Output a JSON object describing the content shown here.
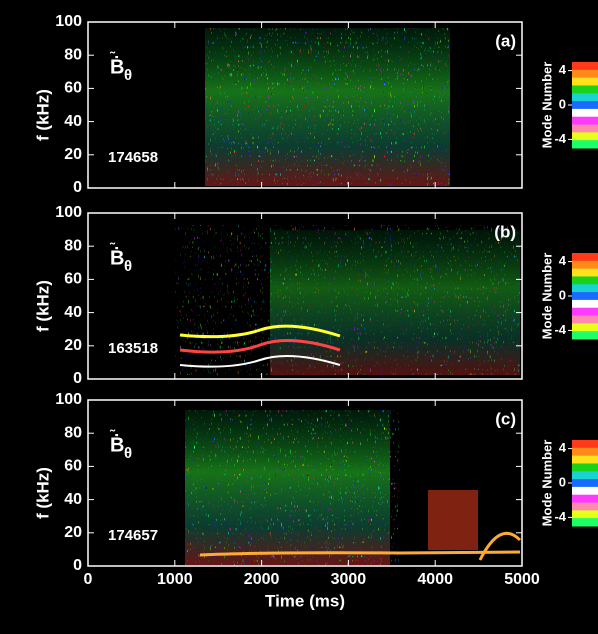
{
  "chart_data": [
    {
      "type": "spectrogram",
      "panel_label": "(a)",
      "shot": "174658",
      "symbol": "Ḃ",
      "subscript": "θ",
      "ylabel": "f (kHz)",
      "ylim": [
        0,
        100
      ],
      "yticks": [
        0,
        20,
        40,
        60,
        80,
        100
      ],
      "xlim": [
        0,
        5000
      ],
      "xticks": [
        0,
        1000,
        2000,
        3000,
        4000,
        5000
      ],
      "xticklabels": false,
      "colorbar": {
        "label": "Mode Number",
        "range": [
          -5,
          5
        ],
        "ticks": [
          4,
          0,
          -4
        ],
        "colors": [
          "#ff3a1a",
          "#ff8a1a",
          "#ffe21a",
          "#1ad21a",
          "#1ad2d2",
          "#1a6aff",
          "#ffffff",
          "#ff3aff",
          "#ff8ab0",
          "#e8ff1a",
          "#1aff6a"
        ]
      }
    },
    {
      "type": "spectrogram",
      "panel_label": "(b)",
      "shot": "163518",
      "symbol": "Ḃ",
      "subscript": "θ",
      "ylabel": "f (kHz)",
      "ylim": [
        0,
        100
      ],
      "yticks": [
        0,
        20,
        40,
        60,
        80,
        100
      ],
      "xlim": [
        0,
        5000
      ],
      "xticks": [
        0,
        1000,
        2000,
        3000,
        4000,
        5000
      ],
      "xticklabels": false,
      "colorbar": {
        "label": "Mode Number",
        "range": [
          -5,
          5
        ],
        "ticks": [
          4,
          0,
          -4
        ],
        "colors": [
          "#ff3a1a",
          "#ff8a1a",
          "#ffe21a",
          "#1ad21a",
          "#1ad2d2",
          "#1a6aff",
          "#ffffff",
          "#ff3aff",
          "#ff8ab0",
          "#e8ff1a",
          "#1aff6a"
        ]
      }
    },
    {
      "type": "spectrogram",
      "panel_label": "(c)",
      "shot": "174657",
      "symbol": "Ḃ",
      "subscript": "θ",
      "ylabel": "f (kHz)",
      "xlabel": "Time (ms)",
      "ylim": [
        0,
        100
      ],
      "yticks": [
        0,
        20,
        40,
        60,
        80,
        100
      ],
      "xlim": [
        0,
        5000
      ],
      "xticks": [
        0,
        1000,
        2000,
        3000,
        4000,
        5000
      ],
      "xticklabels": true,
      "colorbar": {
        "label": "Mode Number",
        "range": [
          -5,
          5
        ],
        "ticks": [
          4,
          0,
          -4
        ],
        "colors": [
          "#ff3a1a",
          "#ff8a1a",
          "#ffe21a",
          "#1ad21a",
          "#1ad2d2",
          "#1a6aff",
          "#ffffff",
          "#ff3aff",
          "#ff8ab0",
          "#e8ff1a",
          "#1aff6a"
        ]
      }
    }
  ]
}
